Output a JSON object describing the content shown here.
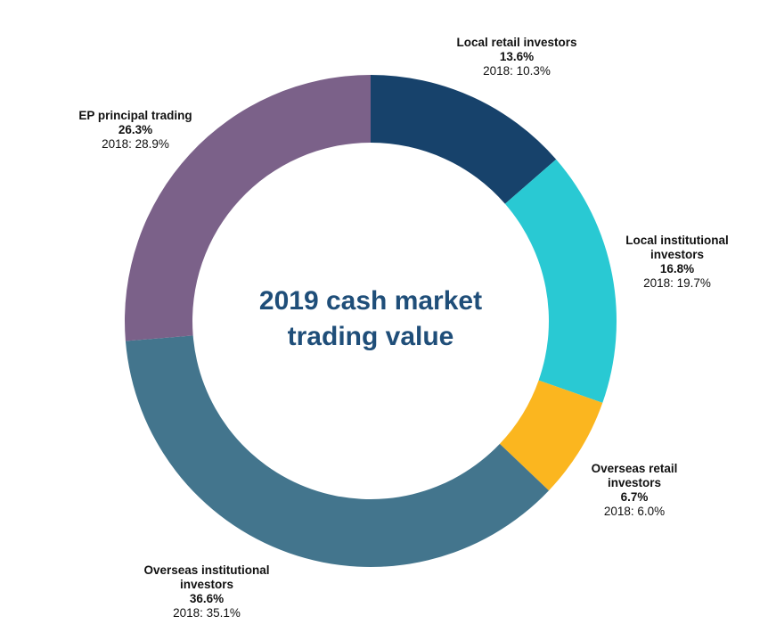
{
  "chart_data": {
    "type": "donut",
    "title_lines": [
      "2019 cash market",
      "trading value"
    ],
    "slices": [
      {
        "name_lines": [
          "Local retail investors"
        ],
        "value_label": "13.6%",
        "value": 13.6,
        "prev_label": "2018: 10.3%",
        "prev_value": 10.3,
        "color": "#17426b"
      },
      {
        "name_lines": [
          "Local institutional",
          "investors"
        ],
        "value_label": "16.8%",
        "value": 16.8,
        "prev_label": "2018: 19.7%",
        "prev_value": 19.7,
        "color": "#29c9d3"
      },
      {
        "name_lines": [
          "Overseas retail",
          "investors"
        ],
        "value_label": "6.7%",
        "value": 6.7,
        "prev_label": "2018: 6.0%",
        "prev_value": 6.0,
        "color": "#fbb61f"
      },
      {
        "name_lines": [
          "Overseas institutional",
          "investors"
        ],
        "value_label": "36.6%",
        "value": 36.6,
        "prev_label": "2018: 35.1%",
        "prev_value": 35.1,
        "color": "#43758d"
      },
      {
        "name_lines": [
          "EP principal trading"
        ],
        "value_label": "26.3%",
        "value": 26.3,
        "prev_label": "2018: 28.9%",
        "prev_value": 28.9,
        "color": "#7b6189"
      }
    ]
  }
}
